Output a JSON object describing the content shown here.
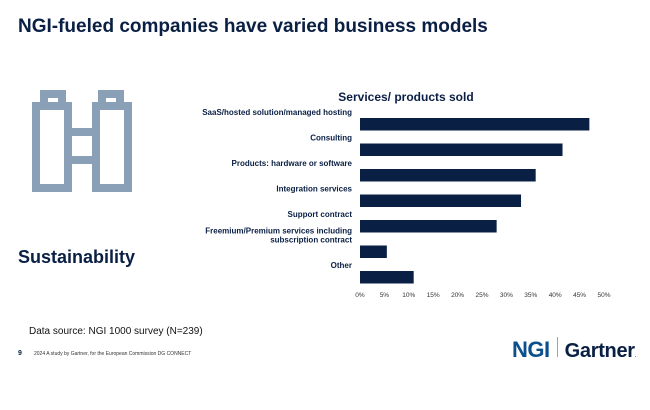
{
  "slide": {
    "title": "NGI-fueled companies have varied business models",
    "section_label": "Sustainability",
    "section_icon": "binoculars-icon",
    "source": "Data source: NGI 1000 survey (N=239)",
    "page_number": "9",
    "footer_note": "2024 A study by Gartner, for the European Commission DG CONNECT",
    "logos": {
      "left": "NGI",
      "right": "Gartner",
      "dot": "."
    },
    "colors": {
      "bar": "#0a1f44",
      "icon": "#8aa0b6",
      "title": "#0a1f44",
      "ngi": "#0b4f8c"
    }
  },
  "chart_data": {
    "type": "bar",
    "orientation": "horizontal",
    "title": "Services/ products sold",
    "categories": [
      "SaaS/hosted solution/managed hosting",
      "Consulting",
      "Products: hardware or software",
      "Integration services",
      "Support contract",
      "Freemium/Premium services including subscription contract",
      "Other"
    ],
    "category_lines": [
      [
        "SaaS/hosted solution/managed hosting"
      ],
      [
        "Consulting"
      ],
      [
        "Products: hardware or software"
      ],
      [
        "Integration services"
      ],
      [
        "Support contract"
      ],
      [
        "Freemium/Premium services including",
        "subscription contract"
      ],
      [
        "Other"
      ]
    ],
    "values": [
      47,
      41.5,
      36,
      33,
      28,
      5.5,
      11
    ],
    "xlim": [
      0,
      50
    ],
    "xticks": [
      "0%",
      "5%",
      "10%",
      "15%",
      "20%",
      "25%",
      "30%",
      "35%",
      "40%",
      "45%",
      "50%"
    ],
    "grid": false,
    "legend": "none"
  }
}
